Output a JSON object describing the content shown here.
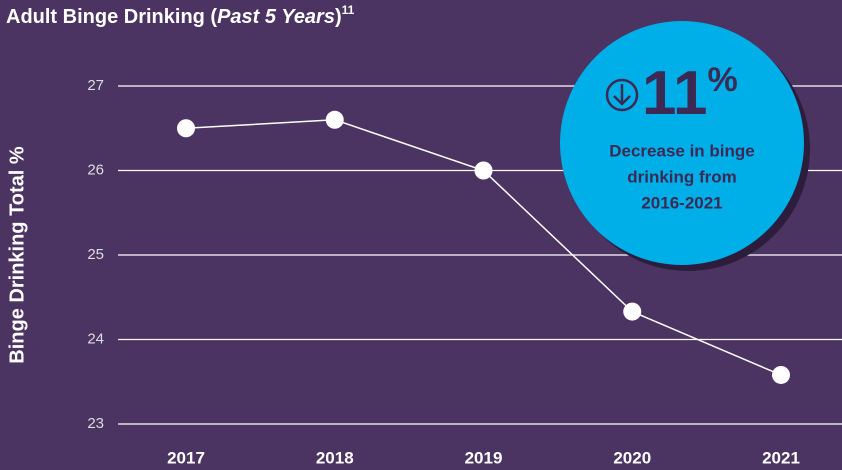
{
  "chart_data": {
    "type": "line",
    "title_parts": [
      "Adult Binge Drinking (",
      "Past 5 Years",
      ")"
    ],
    "title_footnote": "11",
    "y_label": "Binge Drinking Total %",
    "categories": [
      "2017",
      "2018",
      "2019",
      "2020",
      "2021"
    ],
    "series": [
      {
        "name": "Binge Drinking Total %",
        "color": "#ffffff",
        "values": [
          26.5,
          26.6,
          26.0,
          24.33,
          23.58
        ]
      }
    ],
    "ylim": [
      23,
      27
    ],
    "yticks": [
      23,
      24,
      25,
      26,
      27
    ],
    "grid": true,
    "annotation": {
      "headline": "11",
      "headline_unit": "%",
      "lines": [
        "Decrease in binge",
        "drinking from",
        "2016-2021"
      ],
      "color": "#00aee8"
    }
  }
}
